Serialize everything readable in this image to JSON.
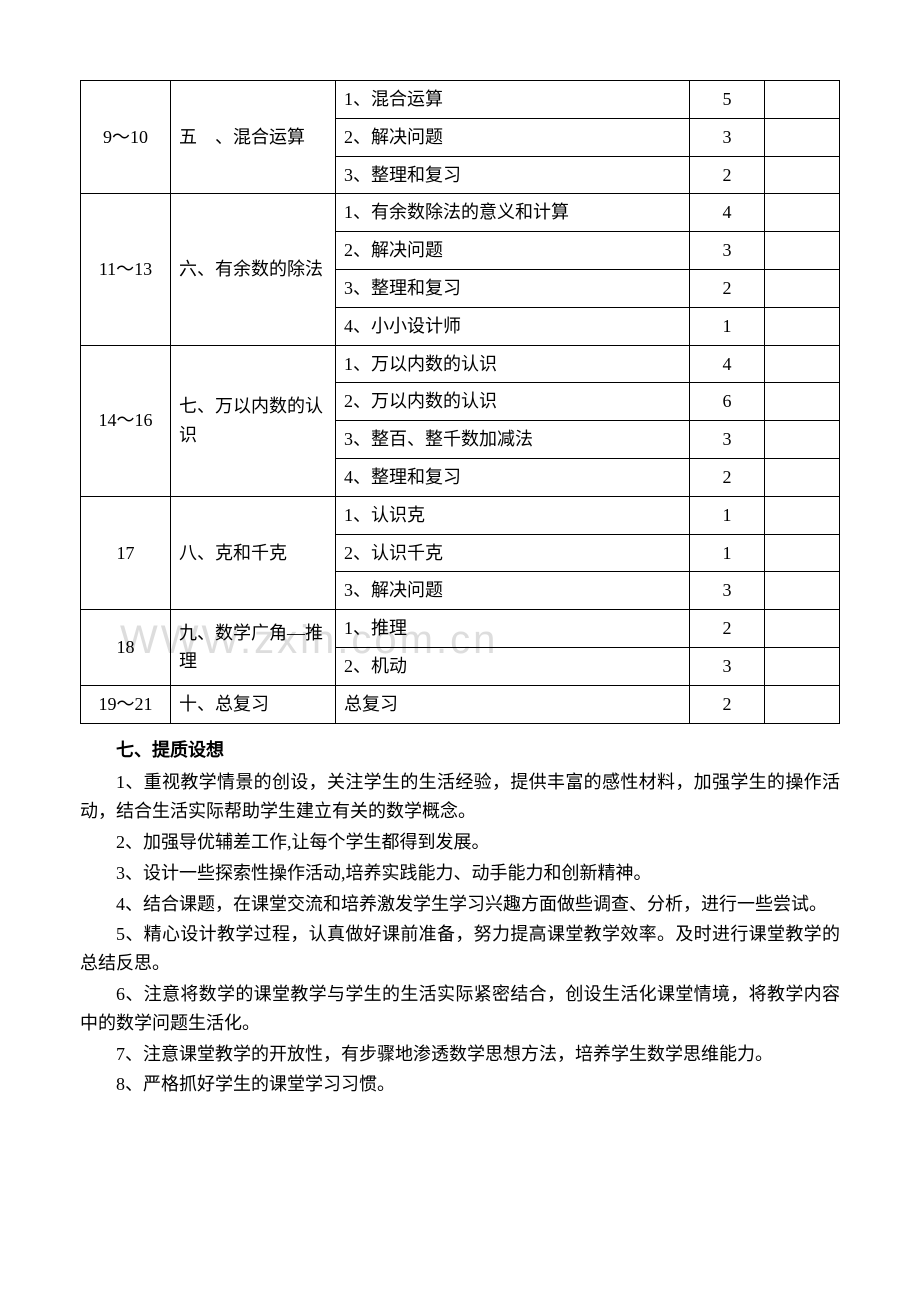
{
  "table": {
    "colWidthsPct": [
      12,
      22,
      42,
      10,
      10
    ],
    "rows": [
      {
        "wk": "9～10",
        "wkSpan": 3,
        "unit": "五　、混合运算",
        "unitSpan": 3,
        "topic": "1、混合运算",
        "hours": "5",
        "note": ""
      },
      {
        "topic": "2、解决问题",
        "hours": "3",
        "note": ""
      },
      {
        "topic": "3、整理和复习",
        "hours": "2",
        "note": ""
      },
      {
        "wk": "11～13",
        "wkSpan": 4,
        "unit": "六、有余数的除法",
        "unitSpan": 4,
        "topic": "1、有余数除法的意义和计算",
        "hours": "4",
        "note": ""
      },
      {
        "topic": "2、解决问题",
        "hours": "3",
        "note": ""
      },
      {
        "topic": "3、整理和复习",
        "hours": "2",
        "note": ""
      },
      {
        "topic": "4、小小设计师",
        "hours": "1",
        "note": ""
      },
      {
        "wk": "14～16",
        "wkSpan": 4,
        "unit": "七、万以内数的认识",
        "unitSpan": 4,
        "topic": "1、万以内数的认识",
        "hours": "4",
        "note": ""
      },
      {
        "topic": "2、万以内数的认识",
        "hours": "6",
        "note": ""
      },
      {
        "topic": "3、整百、整千数加减法",
        "hours": "3",
        "note": ""
      },
      {
        "topic": "4、整理和复习",
        "hours": "2",
        "note": ""
      },
      {
        "wk": "17",
        "wkSpan": 3,
        "unit": "八、克和千克",
        "unitSpan": 3,
        "topic": "1、认识克",
        "hours": "1",
        "note": ""
      },
      {
        "topic": "2、认识千克",
        "hours": "1",
        "note": ""
      },
      {
        "topic": "3、解决问题",
        "hours": "3",
        "note": ""
      },
      {
        "wk": "18",
        "wkSpan": 2,
        "unit": "九、数学广角—推理",
        "unitSpan": 2,
        "topic": "1、推理",
        "hours": "2",
        "note": ""
      },
      {
        "topic": "2、机动",
        "hours": "3",
        "note": ""
      },
      {
        "wk": "19～21",
        "wkSpan": 1,
        "unit": "十、总复习",
        "unitSpan": 1,
        "topic": "总复习",
        "hours": "2",
        "note": ""
      }
    ]
  },
  "sectionTitle": "七、提质设想",
  "paragraphs": [
    "1、重视教学情景的创设，关注学生的生活经验，提供丰富的感性材料，加强学生的操作活动，结合生活实际帮助学生建立有关的数学概念。",
    "2、加强导优辅差工作,让每个学生都得到发展。",
    "3、设计一些探索性操作活动,培养实践能力、动手能力和创新精神。",
    "4、结合课题，在课堂交流和培养激发学生学习兴趣方面做些调查、分析，进行一些尝试。",
    "5、精心设计教学过程，认真做好课前准备，努力提高课堂教学效率。及时进行课堂教学的总结反思。",
    "6、注意将数学的课堂教学与学生的生活实际紧密结合，创设生活化课堂情境，将教学内容中的数学问题生活化。",
    "7、注意课堂教学的开放性，有步骤地渗透数学思想方法，培养学生数学思维能力。",
    "8、严格抓好学生的课堂学习习惯。"
  ],
  "watermark": "WWW.zxin.com.cn"
}
